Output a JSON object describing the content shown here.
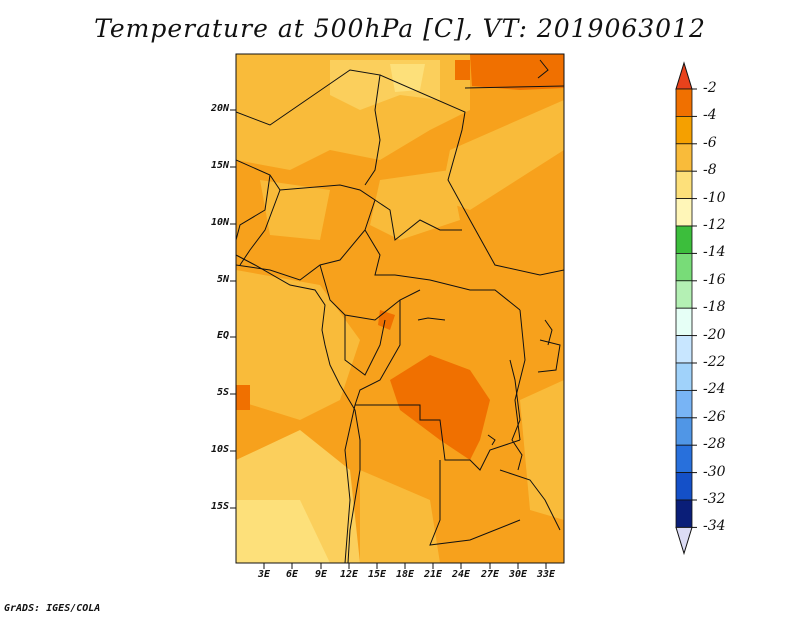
{
  "title": "Temperature at 500hPa [C], VT: 2019063012",
  "credit": "GrADS: IGES/COLA",
  "lat_labels": [
    "20N",
    "15N",
    "10N",
    "5N",
    "EQ",
    "5S",
    "10S",
    "15S"
  ],
  "lon_labels": [
    "3E",
    "6E",
    "9E",
    "12E",
    "15E",
    "18E",
    "21E",
    "24E",
    "27E",
    "30E",
    "33E"
  ],
  "colorbar": {
    "labels": [
      "-2",
      "-4",
      "-6",
      "-8",
      "-10",
      "-12",
      "-14",
      "-16",
      "-18",
      "-20",
      "-22",
      "-24",
      "-26",
      "-28",
      "-30",
      "-32",
      "-34"
    ],
    "colors": [
      "#e8421c",
      "#f07000",
      "#f5a000",
      "#f9bb3a",
      "#fde07a",
      "#fff6b8",
      "#3cbe3c",
      "#78dc78",
      "#b4f0b4",
      "#e6fff6",
      "#c8e6ff",
      "#a0d2fa",
      "#78b4f5",
      "#5096e6",
      "#2870dc",
      "#1450c8",
      "#0a1e78"
    ],
    "top_arrow_color": "#e8421c",
    "bottom_arrow_color": "#dcdcf5"
  }
}
